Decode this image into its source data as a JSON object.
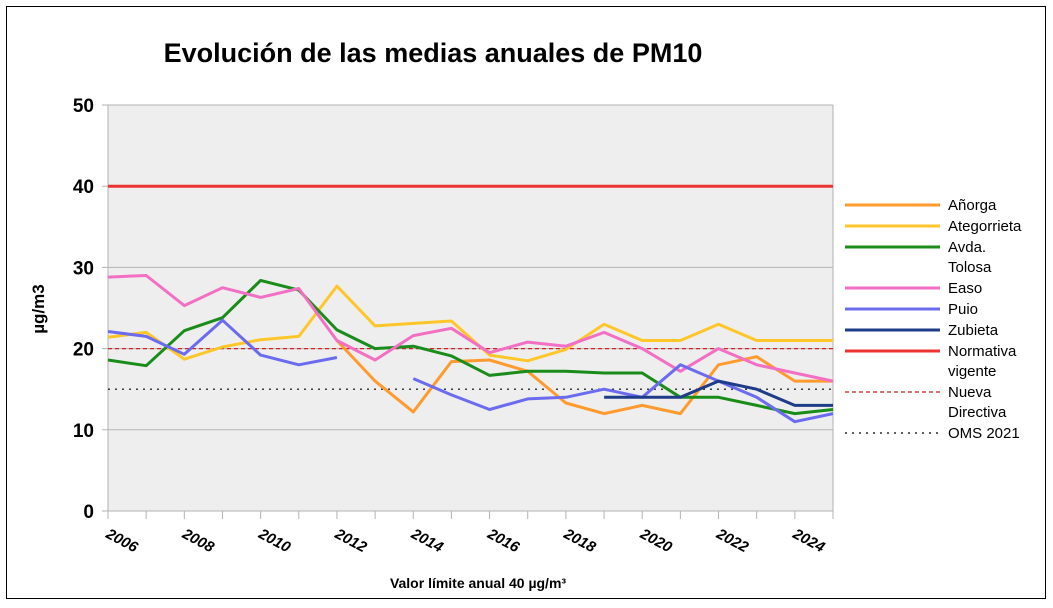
{
  "chart_data": {
    "type": "line",
    "title": "Evolución de las medias anuales de PM10",
    "xlabel": "Valor límite anual 40 µg/m³",
    "ylabel": "µg/m3",
    "ylim": [
      0,
      50
    ],
    "yticks": [
      "0",
      "10",
      "20",
      "30",
      "40",
      "50"
    ],
    "x": [
      2006,
      2007,
      2008,
      2009,
      2010,
      2011,
      2012,
      2013,
      2014,
      2015,
      2016,
      2017,
      2018,
      2019,
      2020,
      2021,
      2022,
      2023,
      2024,
      2025
    ],
    "xtick_labels": [
      "2006",
      "2008",
      "2010",
      "2012",
      "2014",
      "2016",
      "2018",
      "2020",
      "2022",
      "2024"
    ],
    "grid": true,
    "legend_position": "right",
    "series": [
      {
        "name": "Añorga",
        "color": "#ff9a2e",
        "values": [
          null,
          null,
          null,
          null,
          null,
          null,
          21,
          16,
          12.2,
          18.4,
          18.6,
          17.2,
          13.3,
          12,
          13,
          12,
          18,
          19,
          16,
          16
        ]
      },
      {
        "name": "Ategorrieta",
        "color": "#ffc629",
        "values": [
          21.4,
          22,
          18.7,
          20.2,
          21.1,
          21.5,
          27.7,
          22.8,
          23.1,
          23.4,
          19.2,
          18.5,
          19.9,
          23,
          21,
          21,
          23,
          21,
          21,
          21
        ]
      },
      {
        "name": "Avda. Tolosa",
        "color": "#1a8c1a",
        "values": [
          18.6,
          17.9,
          22.2,
          23.8,
          28.4,
          27.2,
          22.3,
          20,
          20.3,
          19.1,
          16.7,
          17.2,
          17.2,
          17,
          17,
          14,
          14,
          13,
          12,
          12.5
        ]
      },
      {
        "name": "Easo",
        "color": "#f26fc4",
        "values": [
          28.8,
          29,
          25.3,
          27.5,
          26.3,
          27.4,
          21,
          18.6,
          21.6,
          22.5,
          19.5,
          20.8,
          20.3,
          22,
          20,
          17.2,
          20,
          18,
          17,
          16
        ]
      },
      {
        "name": "Puio",
        "color": "#6b6bf0",
        "values": [
          22.1,
          21.5,
          19.3,
          23.5,
          19.2,
          18,
          18.9,
          null,
          16.3,
          14.3,
          12.5,
          13.8,
          14,
          15,
          14,
          18,
          16,
          14,
          11,
          12
        ]
      },
      {
        "name": "Zubieta",
        "color": "#1f3c88",
        "values": [
          null,
          null,
          null,
          null,
          null,
          null,
          null,
          null,
          null,
          null,
          null,
          null,
          null,
          14,
          14,
          14,
          16,
          15,
          13,
          13
        ]
      }
    ],
    "reference_lines": [
      {
        "name": "Normativa vigente",
        "value": 40,
        "color": "#ee3333",
        "style": "solid"
      },
      {
        "name": "Nueva Directiva",
        "value": 20,
        "color": "#cc2222",
        "style": "dashed"
      },
      {
        "name": "OMS 2021",
        "value": 15,
        "color": "#000000",
        "style": "dotted"
      }
    ],
    "legend": [
      "Añorga",
      "Ategorrieta",
      "Avda. Tolosa",
      "Easo",
      "Puio",
      "Zubieta",
      "Normativa vigente",
      "Nueva Directiva",
      "OMS 2021"
    ]
  }
}
